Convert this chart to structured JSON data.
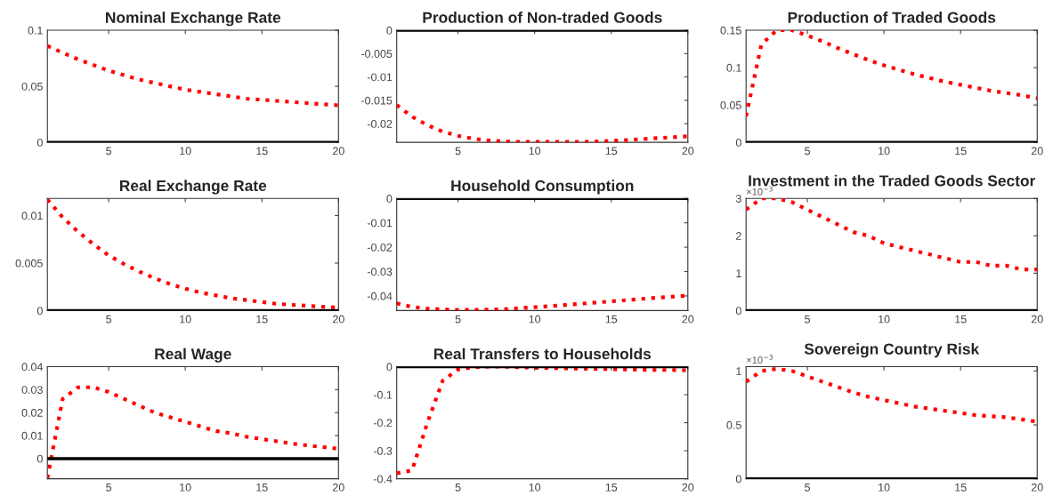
{
  "chart_data": [
    {
      "type": "line",
      "title": "Nominal Exchange Rate",
      "x": [
        1,
        2,
        3,
        4,
        5,
        6,
        7,
        8,
        9,
        10,
        11,
        12,
        13,
        14,
        15,
        16,
        17,
        18,
        19,
        20
      ],
      "series": [
        {
          "color": "#ff0000",
          "values": [
            0.086,
            0.08,
            0.074,
            0.069,
            0.064,
            0.06,
            0.056,
            0.053,
            0.05,
            0.047,
            0.045,
            0.043,
            0.041,
            0.039,
            0.038,
            0.037,
            0.036,
            0.035,
            0.034,
            0.033
          ]
        }
      ],
      "xlim": [
        1,
        20
      ],
      "xticks": [
        5,
        10,
        15,
        20
      ],
      "ylim": [
        0,
        0.1
      ],
      "yticks": [
        0,
        0.05,
        0.1
      ],
      "ref_lines": [
        {
          "axis": "y",
          "value": 0,
          "color": "#000000"
        }
      ],
      "line_style": "dotted"
    },
    {
      "type": "line",
      "title": "Production of Non-traded Goods",
      "x": [
        1,
        2,
        3,
        4,
        5,
        6,
        7,
        8,
        9,
        10,
        11,
        12,
        13,
        14,
        15,
        16,
        17,
        18,
        19,
        20
      ],
      "series": [
        {
          "color": "#ff0000",
          "values": [
            -0.016,
            -0.0185,
            -0.0203,
            -0.0217,
            -0.0226,
            -0.0232,
            -0.0236,
            -0.0238,
            -0.0239,
            -0.0239,
            -0.0239,
            -0.0239,
            -0.0239,
            -0.0238,
            -0.0237,
            -0.0235,
            -0.0233,
            -0.0231,
            -0.0229,
            -0.0227
          ]
        }
      ],
      "xlim": [
        1,
        20
      ],
      "xticks": [
        5,
        10,
        15,
        20
      ],
      "ylim": [
        -0.024,
        0
      ],
      "yticks": [
        -0.02,
        -0.015,
        -0.01,
        -0.005,
        0
      ],
      "ref_lines": [
        {
          "axis": "y",
          "value": 0,
          "color": "#000000"
        }
      ],
      "line_style": "dotted"
    },
    {
      "type": "line",
      "title": "Production of Traded Goods",
      "x": [
        1,
        2,
        3,
        4,
        5,
        6,
        7,
        8,
        9,
        10,
        11,
        12,
        13,
        14,
        15,
        16,
        17,
        18,
        19,
        20
      ],
      "series": [
        {
          "color": "#ff0000",
          "values": [
            0.035,
            0.131,
            0.15,
            0.15,
            0.143,
            0.135,
            0.126,
            0.118,
            0.11,
            0.103,
            0.097,
            0.091,
            0.086,
            0.081,
            0.077,
            0.073,
            0.069,
            0.066,
            0.063,
            0.059
          ]
        }
      ],
      "xlim": [
        1,
        20
      ],
      "xticks": [
        5,
        10,
        15,
        20
      ],
      "ylim": [
        0,
        0.15
      ],
      "yticks": [
        0,
        0.05,
        0.1,
        0.15
      ],
      "ref_lines": [
        {
          "axis": "y",
          "value": 0,
          "color": "#000000"
        }
      ],
      "line_style": "dotted"
    },
    {
      "type": "line",
      "title": "Real Exchange Rate",
      "x": [
        1,
        2,
        3,
        4,
        5,
        6,
        7,
        8,
        9,
        10,
        11,
        12,
        13,
        14,
        15,
        16,
        17,
        18,
        19,
        20
      ],
      "series": [
        {
          "color": "#ff0000",
          "values": [
            0.0117,
            0.0098,
            0.0083,
            0.007,
            0.0058,
            0.0049,
            0.0041,
            0.0034,
            0.0028,
            0.0023,
            0.0019,
            0.0016,
            0.0013,
            0.0011,
            0.0009,
            0.0007,
            0.0006,
            0.0005,
            0.0004,
            0.0003
          ]
        }
      ],
      "xlim": [
        1,
        20
      ],
      "xticks": [
        5,
        10,
        15,
        20
      ],
      "ylim": [
        0,
        0.0118
      ],
      "yticks": [
        0,
        0.005,
        0.01
      ],
      "ref_lines": [
        {
          "axis": "y",
          "value": 0,
          "color": "#000000"
        }
      ],
      "line_style": "dotted"
    },
    {
      "type": "line",
      "title": "Household Consumption",
      "x": [
        1,
        2,
        3,
        4,
        5,
        6,
        7,
        8,
        9,
        10,
        11,
        12,
        13,
        14,
        15,
        16,
        17,
        18,
        19,
        20
      ],
      "series": [
        {
          "color": "#ff0000",
          "values": [
            -0.043,
            -0.0445,
            -0.0452,
            -0.0455,
            -0.0457,
            -0.0457,
            -0.0456,
            -0.0454,
            -0.045,
            -0.0446,
            -0.0442,
            -0.0437,
            -0.0432,
            -0.0427,
            -0.0422,
            -0.0417,
            -0.0412,
            -0.0407,
            -0.0403,
            -0.0399
          ]
        }
      ],
      "xlim": [
        1,
        20
      ],
      "xticks": [
        5,
        10,
        15,
        20
      ],
      "ylim": [
        -0.046,
        0
      ],
      "yticks": [
        -0.04,
        -0.03,
        -0.02,
        -0.01,
        0
      ],
      "ref_lines": [
        {
          "axis": "y",
          "value": 0,
          "color": "#000000"
        }
      ],
      "line_style": "dotted"
    },
    {
      "type": "line",
      "title": "Investment in the Traded Goods Sector",
      "annotations": [
        "×10$^{−3}$"
      ],
      "x": [
        1,
        2,
        3,
        4,
        5,
        6,
        7,
        8,
        9,
        10,
        11,
        12,
        13,
        14,
        15,
        16,
        17,
        18,
        19,
        20
      ],
      "series": [
        {
          "color": "#ff0000",
          "values": [
            2.7,
            3.0,
            3.0,
            2.9,
            2.7,
            2.5,
            2.3,
            2.1,
            2.0,
            1.8,
            1.7,
            1.6,
            1.5,
            1.4,
            1.3,
            1.3,
            1.2,
            1.2,
            1.1,
            1.1
          ]
        }
      ],
      "xlim": [
        1,
        20
      ],
      "xticks": [
        5,
        10,
        15,
        20
      ],
      "ylim": [
        0,
        3
      ],
      "yticks": [
        0,
        1,
        2,
        3
      ],
      "ref_lines": [
        {
          "axis": "y",
          "value": 0,
          "color": "#000000"
        }
      ],
      "line_style": "dotted"
    },
    {
      "type": "line",
      "title": "Real Wage",
      "x": [
        1,
        2,
        3,
        4,
        5,
        6,
        7,
        8,
        9,
        10,
        11,
        12,
        13,
        14,
        15,
        16,
        17,
        18,
        19,
        20
      ],
      "series": [
        {
          "color": "#ff0000",
          "values": [
            -0.0085,
            0.026,
            0.031,
            0.031,
            0.029,
            0.026,
            0.023,
            0.02,
            0.018,
            0.016,
            0.014,
            0.012,
            0.011,
            0.0095,
            0.0085,
            0.0075,
            0.0065,
            0.0057,
            0.005,
            0.0043
          ]
        }
      ],
      "xlim": [
        1,
        20
      ],
      "xticks": [
        5,
        10,
        15,
        20
      ],
      "ylim": [
        -0.0088,
        0.04
      ],
      "yticks": [
        0,
        0.01,
        0.02,
        0.03,
        0.04
      ],
      "ref_lines": [
        {
          "axis": "y",
          "value": 0,
          "color": "#000000"
        }
      ],
      "line_style": "dotted"
    },
    {
      "type": "line",
      "title": "Real Transfers to Households",
      "x": [
        1,
        2,
        3,
        4,
        5,
        6,
        7,
        8,
        9,
        10,
        11,
        12,
        13,
        14,
        15,
        16,
        17,
        18,
        19,
        20
      ],
      "series": [
        {
          "color": "#ff0000",
          "values": [
            -0.38,
            -0.37,
            -0.2,
            -0.05,
            -0.01,
            -0.002,
            0,
            0,
            -0.002,
            -0.004,
            -0.005,
            -0.006,
            -0.007,
            -0.008,
            -0.009,
            -0.01,
            -0.011,
            -0.012,
            -0.012,
            -0.013
          ]
        }
      ],
      "xlim": [
        1,
        20
      ],
      "xticks": [
        5,
        10,
        15,
        20
      ],
      "ylim": [
        -0.4,
        0
      ],
      "yticks": [
        -0.4,
        -0.3,
        -0.2,
        -0.1,
        0
      ],
      "ref_lines": [
        {
          "axis": "y",
          "value": 0,
          "color": "#000000"
        }
      ],
      "line_style": "dotted"
    },
    {
      "type": "line",
      "title": "Sovereign Country Risk",
      "annotations": [
        "×10$^{−3}$"
      ],
      "x": [
        1,
        2,
        3,
        4,
        5,
        6,
        7,
        8,
        9,
        10,
        11,
        12,
        13,
        14,
        15,
        16,
        17,
        18,
        19,
        20
      ],
      "series": [
        {
          "color": "#ff0000",
          "values": [
            0.9,
            1.0,
            1.02,
            1.0,
            0.95,
            0.9,
            0.85,
            0.8,
            0.76,
            0.73,
            0.7,
            0.67,
            0.65,
            0.63,
            0.61,
            0.59,
            0.58,
            0.57,
            0.55,
            0.53
          ]
        }
      ],
      "xlim": [
        1,
        20
      ],
      "xticks": [
        5,
        10,
        15,
        20
      ],
      "ylim": [
        0,
        1.04
      ],
      "yticks": [
        0,
        0.5,
        1
      ],
      "ref_lines": [
        {
          "axis": "y",
          "value": 0,
          "color": "#000000"
        }
      ],
      "line_style": "dotted"
    }
  ]
}
